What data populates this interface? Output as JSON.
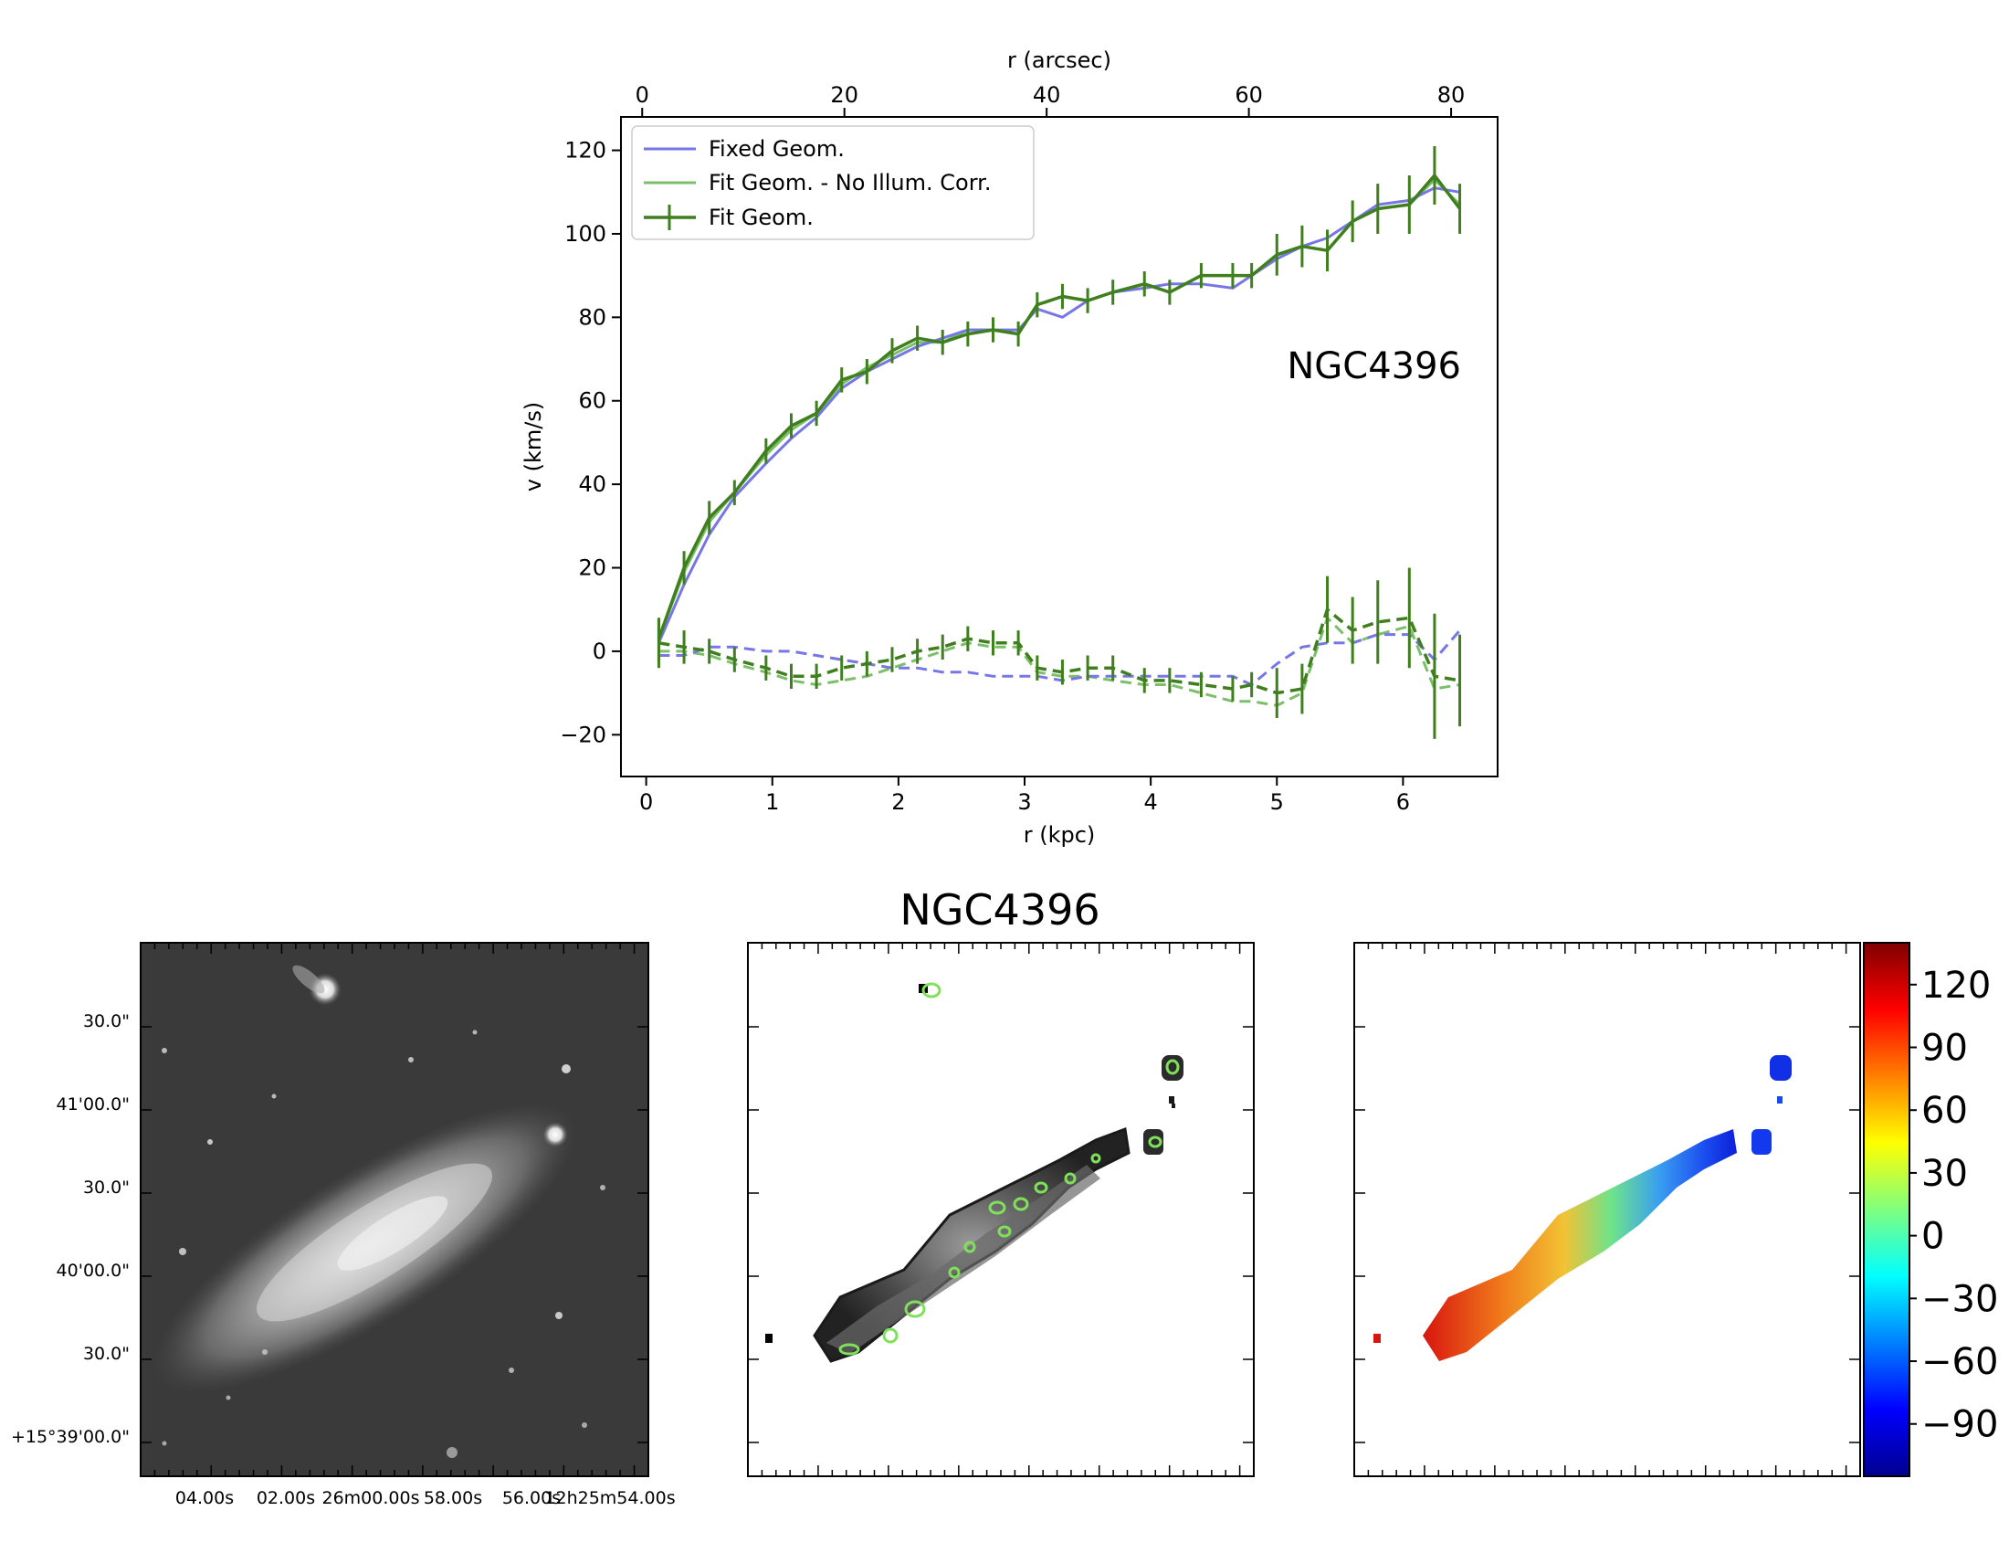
{
  "chart_data": [
    {
      "type": "line",
      "title": "",
      "annotation": "NGC4396",
      "xlabel": "r (kpc)",
      "x2label": "r (arcsec)",
      "ylabel": "v (km/s)",
      "xlim": [
        -0.2,
        6.75
      ],
      "ylim": [
        -30,
        128
      ],
      "x2lim": [
        -2.1,
        84.6
      ],
      "xticks": [
        "0",
        "1",
        "2",
        "3",
        "4",
        "5",
        "6"
      ],
      "x2ticks": [
        "0",
        "20",
        "40",
        "60",
        "80"
      ],
      "yticks": [
        "−20",
        "0",
        "20",
        "40",
        "60",
        "80",
        "100",
        "120"
      ],
      "legend_position": "top-left",
      "legend": [
        "Fixed Geom.",
        "Fit Geom. - No Illum. Corr.",
        "Fit Geom."
      ],
      "colors": {
        "fixed": "#7676e6",
        "nocorr": "#7bbf6a",
        "fit": "#3f7f1e"
      },
      "x": [
        0.1,
        0.3,
        0.5,
        0.7,
        0.95,
        1.15,
        1.35,
        1.55,
        1.75,
        1.95,
        2.15,
        2.35,
        2.55,
        2.75,
        2.95,
        3.1,
        3.3,
        3.5,
        3.7,
        3.95,
        4.15,
        4.4,
        4.65,
        4.8,
        5.0,
        5.2,
        5.4,
        5.6,
        5.8,
        6.05,
        6.25,
        6.45
      ],
      "series": [
        {
          "name": "Fixed Geom. (rotation)",
          "style": "solid",
          "values": [
            2,
            16,
            28,
            37,
            45,
            51,
            56,
            63,
            67,
            70,
            73,
            75,
            77,
            77,
            77,
            82,
            80,
            84,
            86,
            87,
            88,
            88,
            87,
            90,
            94,
            97,
            99,
            103,
            107,
            108,
            111,
            110
          ]
        },
        {
          "name": "Fit Geom. - No Illum. Corr. (rotation)",
          "style": "solid",
          "values": [
            3,
            19,
            31,
            38,
            47,
            53,
            57,
            64,
            68,
            71,
            74,
            74,
            77,
            77,
            76,
            83,
            85,
            84,
            86,
            88,
            86,
            90,
            90,
            90,
            95,
            97,
            96,
            103,
            106,
            107,
            113,
            107
          ]
        },
        {
          "name": "Fit Geom. (rotation)",
          "style": "solid",
          "errorbars": true,
          "values": [
            3,
            20,
            32,
            38,
            48,
            54,
            57,
            65,
            67,
            72,
            75,
            74,
            76,
            77,
            76,
            83,
            85,
            84,
            86,
            88,
            86,
            90,
            90,
            90,
            95,
            97,
            96,
            103,
            106,
            107,
            114,
            106
          ]
        },
        {
          "name": "Fixed Geom. (radial)",
          "style": "dashed",
          "values": [
            -1,
            -1,
            1,
            1,
            0,
            0,
            -1,
            -2,
            -3,
            -4,
            -4,
            -5,
            -5,
            -6,
            -6,
            -6,
            -7,
            -6,
            -6,
            -6,
            -6,
            -6,
            -6,
            -8,
            -3,
            1,
            2,
            2,
            4,
            4,
            -2,
            5
          ]
        },
        {
          "name": "Fit Geom. - No Illum. Corr. (radial)",
          "style": "dashed",
          "values": [
            0,
            0,
            -1,
            -3,
            -5,
            -7,
            -8,
            -7,
            -6,
            -4,
            -2,
            0,
            2,
            1,
            1,
            -5,
            -6,
            -6,
            -7,
            -8,
            -8,
            -10,
            -12,
            -12,
            -13,
            -10,
            8,
            2,
            4,
            6,
            -9,
            -8
          ]
        },
        {
          "name": "Fit Geom. (radial)",
          "style": "dashed",
          "errorbars": true,
          "values": [
            2,
            1,
            0,
            -2,
            -4,
            -6,
            -6,
            -4,
            -3,
            -2,
            0,
            1,
            3,
            2,
            2,
            -4,
            -5,
            -4,
            -4,
            -7,
            -7,
            -8,
            -9,
            -8,
            -10,
            -9,
            10,
            5,
            7,
            8,
            -6,
            -7
          ]
        }
      ],
      "errors_fit_rotation": [
        5,
        4,
        4,
        3,
        3,
        3,
        3,
        3,
        3,
        3,
        3,
        3,
        3,
        3,
        3,
        3,
        3,
        3,
        3,
        3,
        3,
        3,
        3,
        3,
        5,
        5,
        5,
        5,
        6,
        7,
        7,
        6
      ],
      "errors_fit_radial": [
        6,
        4,
        3,
        3,
        3,
        3,
        3,
        3,
        3,
        3,
        3,
        3,
        3,
        3,
        3,
        3,
        3,
        3,
        3,
        3,
        3,
        3,
        3,
        3,
        6,
        6,
        8,
        8,
        10,
        12,
        15,
        11
      ]
    },
    {
      "type": "image",
      "panel": "optical image",
      "ytick_labels": [
        "30.0\"",
        "41'00.0\"",
        "30.0\"",
        "40'00.0\"",
        "30.0\"",
        "+15°39'00.0\""
      ],
      "xtick_labels": [
        "04.00s",
        "02.00s",
        "26m00.00s",
        "58.00s",
        "56.00s",
        "12h25m54.00s"
      ]
    },
    {
      "type": "image",
      "panel": "intensity map",
      "title": "NGC4396"
    },
    {
      "type": "heatmap",
      "panel": "velocity field",
      "colorbar_range": [
        -115,
        140
      ],
      "colorbar_ticks": [
        "120",
        "90",
        "60",
        "30",
        "0",
        "−30",
        "−60",
        "−90"
      ],
      "colormap": "jet"
    }
  ]
}
